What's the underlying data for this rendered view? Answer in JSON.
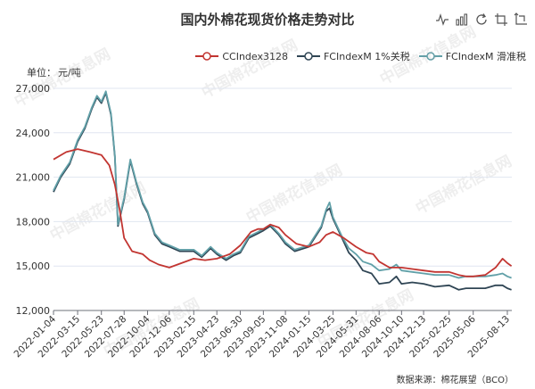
{
  "chart_data": {
    "type": "line",
    "title": "国内外棉花现货价格走势对比",
    "ylabel": "单位：元/吨",
    "xlabel": "",
    "ylim": [
      12000,
      27000
    ],
    "yticks": [
      12000,
      15000,
      18000,
      21000,
      24000,
      27000
    ],
    "ytick_labels": [
      "12,000",
      "15,000",
      "18,000",
      "21,000",
      "24,000",
      "27,000"
    ],
    "xtick_labels": [
      "2022-01-04",
      "2022-03-15",
      "2022-05-23",
      "2022-07-28",
      "2022-10-04",
      "2022-12-06",
      "2023-02-15",
      "2023-04-23",
      "2023-06-30",
      "2023-09-05",
      "2023-11-08",
      "2024-01-15",
      "2024-03-25",
      "2024-05-31",
      "2024-08-06",
      "2024-10-10",
      "2024-12-13",
      "2025-02-25",
      "2025-05-06",
      "2025-08-13"
    ],
    "grid": "horizontal",
    "legend_position": "top-right",
    "series": [
      {
        "name": "CCIndex3128",
        "color": "#c23531",
        "points": [
          [
            "2022-01-04",
            22200
          ],
          [
            "2022-02-10",
            22700
          ],
          [
            "2022-03-15",
            22900
          ],
          [
            "2022-04-20",
            22700
          ],
          [
            "2022-05-23",
            22500
          ],
          [
            "2022-06-15",
            21800
          ],
          [
            "2022-07-01",
            20500
          ],
          [
            "2022-07-15",
            18800
          ],
          [
            "2022-07-28",
            16900
          ],
          [
            "2022-08-20",
            16000
          ],
          [
            "2022-09-20",
            15800
          ],
          [
            "2022-10-10",
            15400
          ],
          [
            "2022-11-05",
            15100
          ],
          [
            "2022-12-06",
            14900
          ],
          [
            "2022-12-30",
            15100
          ],
          [
            "2023-02-15",
            15500
          ],
          [
            "2023-03-20",
            15400
          ],
          [
            "2023-04-23",
            15500
          ],
          [
            "2023-05-30",
            15800
          ],
          [
            "2023-06-30",
            16400
          ],
          [
            "2023-07-31",
            17300
          ],
          [
            "2023-08-20",
            17500
          ],
          [
            "2023-09-05",
            17500
          ],
          [
            "2023-09-25",
            17800
          ],
          [
            "2023-10-20",
            17600
          ],
          [
            "2023-11-08",
            17100
          ],
          [
            "2023-12-10",
            16500
          ],
          [
            "2024-01-15",
            16300
          ],
          [
            "2024-02-15",
            16600
          ],
          [
            "2024-03-05",
            17100
          ],
          [
            "2024-03-25",
            17300
          ],
          [
            "2024-04-25",
            16900
          ],
          [
            "2024-05-31",
            16300
          ],
          [
            "2024-06-30",
            15900
          ],
          [
            "2024-07-20",
            15800
          ],
          [
            "2024-08-06",
            15300
          ],
          [
            "2024-09-05",
            14900
          ],
          [
            "2024-10-10",
            14900
          ],
          [
            "2024-11-10",
            14800
          ],
          [
            "2024-12-13",
            14700
          ],
          [
            "2025-01-15",
            14600
          ],
          [
            "2025-02-25",
            14600
          ],
          [
            "2025-03-25",
            14400
          ],
          [
            "2025-04-15",
            14300
          ],
          [
            "2025-05-06",
            14300
          ],
          [
            "2025-06-10",
            14400
          ],
          [
            "2025-07-10",
            14900
          ],
          [
            "2025-07-30",
            15500
          ],
          [
            "2025-08-13",
            15200
          ],
          [
            "2025-08-25",
            15000
          ]
        ]
      },
      {
        "name": "FCIndexM 1%关税",
        "color": "#2f4554",
        "points": [
          [
            "2022-01-04",
            20000
          ],
          [
            "2022-01-25",
            21000
          ],
          [
            "2022-02-20",
            21900
          ],
          [
            "2022-03-15",
            23400
          ],
          [
            "2022-04-05",
            24300
          ],
          [
            "2022-04-25",
            25600
          ],
          [
            "2022-05-10",
            26400
          ],
          [
            "2022-05-23",
            26000
          ],
          [
            "2022-06-05",
            26700
          ],
          [
            "2022-06-20",
            25200
          ],
          [
            "2022-07-01",
            22400
          ],
          [
            "2022-07-10",
            17700
          ],
          [
            "2022-07-28",
            19500
          ],
          [
            "2022-08-15",
            22100
          ],
          [
            "2022-09-01",
            20600
          ],
          [
            "2022-09-20",
            19200
          ],
          [
            "2022-10-04",
            18600
          ],
          [
            "2022-10-25",
            17100
          ],
          [
            "2022-11-15",
            16500
          ],
          [
            "2022-12-06",
            16300
          ],
          [
            "2023-01-05",
            16000
          ],
          [
            "2023-02-15",
            16000
          ],
          [
            "2023-03-10",
            15600
          ],
          [
            "2023-04-05",
            16200
          ],
          [
            "2023-04-23",
            15800
          ],
          [
            "2023-05-20",
            15400
          ],
          [
            "2023-06-10",
            15700
          ],
          [
            "2023-06-30",
            15900
          ],
          [
            "2023-07-25",
            16900
          ],
          [
            "2023-08-20",
            17200
          ],
          [
            "2023-09-05",
            17400
          ],
          [
            "2023-09-25",
            17700
          ],
          [
            "2023-10-20",
            17100
          ],
          [
            "2023-11-08",
            16500
          ],
          [
            "2023-12-05",
            16000
          ],
          [
            "2024-01-15",
            16300
          ],
          [
            "2024-02-20",
            17600
          ],
          [
            "2024-03-05",
            18700
          ],
          [
            "2024-03-15",
            18900
          ],
          [
            "2024-03-25",
            18200
          ],
          [
            "2024-04-20",
            16900
          ],
          [
            "2024-05-10",
            15900
          ],
          [
            "2024-05-31",
            15400
          ],
          [
            "2024-06-20",
            14700
          ],
          [
            "2024-07-15",
            14500
          ],
          [
            "2024-08-06",
            13800
          ],
          [
            "2024-09-05",
            13900
          ],
          [
            "2024-09-25",
            14300
          ],
          [
            "2024-10-10",
            13800
          ],
          [
            "2024-11-10",
            13900
          ],
          [
            "2024-12-13",
            13800
          ],
          [
            "2025-01-15",
            13600
          ],
          [
            "2025-02-25",
            13700
          ],
          [
            "2025-03-25",
            13400
          ],
          [
            "2025-04-15",
            13500
          ],
          [
            "2025-05-06",
            13500
          ],
          [
            "2025-06-10",
            13500
          ],
          [
            "2025-07-10",
            13700
          ],
          [
            "2025-07-30",
            13700
          ],
          [
            "2025-08-13",
            13500
          ],
          [
            "2025-08-25",
            13400
          ]
        ]
      },
      {
        "name": "FCIndexM 滑准税",
        "color": "#61a0a8",
        "points": [
          [
            "2022-01-04",
            20100
          ],
          [
            "2022-01-25",
            21100
          ],
          [
            "2022-02-20",
            22000
          ],
          [
            "2022-03-15",
            23500
          ],
          [
            "2022-04-05",
            24400
          ],
          [
            "2022-04-25",
            25700
          ],
          [
            "2022-05-10",
            26500
          ],
          [
            "2022-05-23",
            26100
          ],
          [
            "2022-06-05",
            26800
          ],
          [
            "2022-06-20",
            25300
          ],
          [
            "2022-07-01",
            22500
          ],
          [
            "2022-07-10",
            17800
          ],
          [
            "2022-07-28",
            19600
          ],
          [
            "2022-08-15",
            22200
          ],
          [
            "2022-09-01",
            20700
          ],
          [
            "2022-09-20",
            19300
          ],
          [
            "2022-10-04",
            18700
          ],
          [
            "2022-10-25",
            17200
          ],
          [
            "2022-11-15",
            16600
          ],
          [
            "2022-12-06",
            16400
          ],
          [
            "2023-01-05",
            16100
          ],
          [
            "2023-02-15",
            16100
          ],
          [
            "2023-03-10",
            15700
          ],
          [
            "2023-04-05",
            16300
          ],
          [
            "2023-04-23",
            15900
          ],
          [
            "2023-05-20",
            15500
          ],
          [
            "2023-06-10",
            15800
          ],
          [
            "2023-06-30",
            16000
          ],
          [
            "2023-07-25",
            17000
          ],
          [
            "2023-08-20",
            17300
          ],
          [
            "2023-09-05",
            17500
          ],
          [
            "2023-09-25",
            17800
          ],
          [
            "2023-10-20",
            17200
          ],
          [
            "2023-11-08",
            16600
          ],
          [
            "2023-12-05",
            16100
          ],
          [
            "2024-01-15",
            16400
          ],
          [
            "2024-02-20",
            17700
          ],
          [
            "2024-03-05",
            18800
          ],
          [
            "2024-03-15",
            19300
          ],
          [
            "2024-03-25",
            18300
          ],
          [
            "2024-04-20",
            17000
          ],
          [
            "2024-05-10",
            16200
          ],
          [
            "2024-05-31",
            15800
          ],
          [
            "2024-06-20",
            15300
          ],
          [
            "2024-07-15",
            15100
          ],
          [
            "2024-08-06",
            14700
          ],
          [
            "2024-09-05",
            14800
          ],
          [
            "2024-09-25",
            15100
          ],
          [
            "2024-10-10",
            14700
          ],
          [
            "2024-11-10",
            14600
          ],
          [
            "2024-12-13",
            14500
          ],
          [
            "2025-01-15",
            14400
          ],
          [
            "2025-02-25",
            14400
          ],
          [
            "2025-03-25",
            14200
          ],
          [
            "2025-04-15",
            14300
          ],
          [
            "2025-05-06",
            14300
          ],
          [
            "2025-06-10",
            14300
          ],
          [
            "2025-07-10",
            14400
          ],
          [
            "2025-07-30",
            14500
          ],
          [
            "2025-08-13",
            14300
          ],
          [
            "2025-08-25",
            14200
          ]
        ]
      }
    ]
  },
  "unit": {
    "label": "单位：",
    "value": "元/吨"
  },
  "source_note": "数据来源：棉花展望（BCO）",
  "watermark": "中国棉花信息网",
  "toolbox": [
    {
      "icon": "line-chart-icon"
    },
    {
      "icon": "bar-chart-icon"
    },
    {
      "icon": "refresh-icon"
    },
    {
      "icon": "zoom-select-icon"
    },
    {
      "icon": "zoom-reset-icon"
    }
  ],
  "colors": {
    "grid": "#e0e6f1",
    "axis": "#6e7079",
    "text": "#333333"
  }
}
